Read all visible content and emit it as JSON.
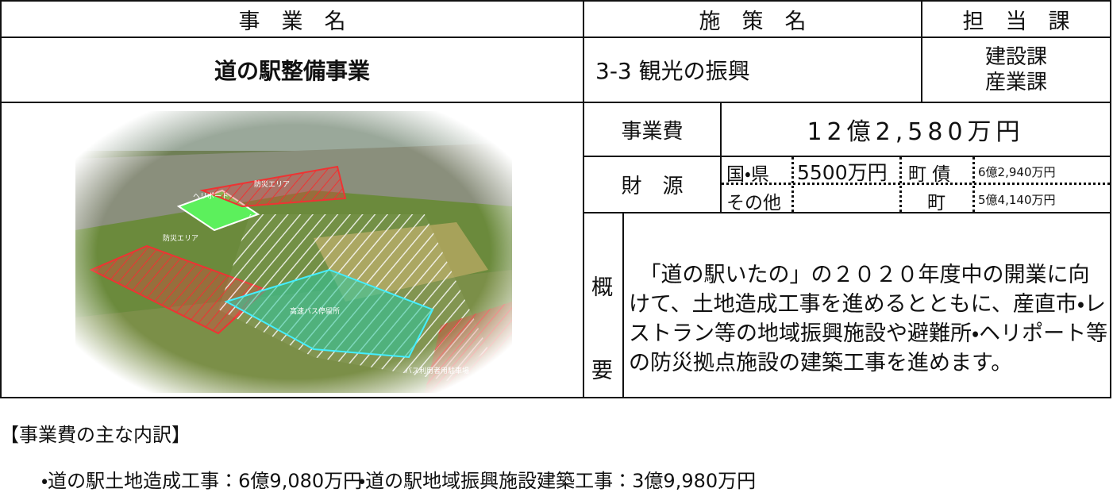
{
  "header": {
    "project_name": "事　業　名",
    "policy_name": "施　策　名",
    "department": "担　当　課"
  },
  "project": {
    "name": "道の駅整備事業",
    "policy": "3-3 観光の振興",
    "departments": [
      "建設課",
      "産業課"
    ]
  },
  "photo_labels": [
    "ヘリポート",
    "防災エリア",
    "防災エリア",
    "高速バス停留所",
    "バス利用者用駐車場"
  ],
  "cost": {
    "label": "事業費",
    "amount": "12億2,580万円"
  },
  "funding": {
    "label": "財　源",
    "national_prefectural": {
      "label": "国・県",
      "amount": "5500万円"
    },
    "town_bond": {
      "label": "町 債",
      "amount": "6億2,940万円"
    },
    "other": {
      "label": "その他"
    },
    "town": {
      "label": "町",
      "amount": "5億4,140万円"
    }
  },
  "overview": {
    "label": [
      "概",
      "要"
    ],
    "text": "　「道の駅いたの」の２０２０年度中の開業に向けて、土地造成工事を進めるとともに、産直市・レストラン等の地域振興施設や避難所・ヘリポート等の防災拠点施設の建築工事を進めます。"
  },
  "breakdown": {
    "title": "【事業費の主な内訳】",
    "items": [
      "・道の駅土地造成工事：6億9,080万円",
      "・道の駅地域振興施設建築工事：3億9,980万円"
    ]
  }
}
